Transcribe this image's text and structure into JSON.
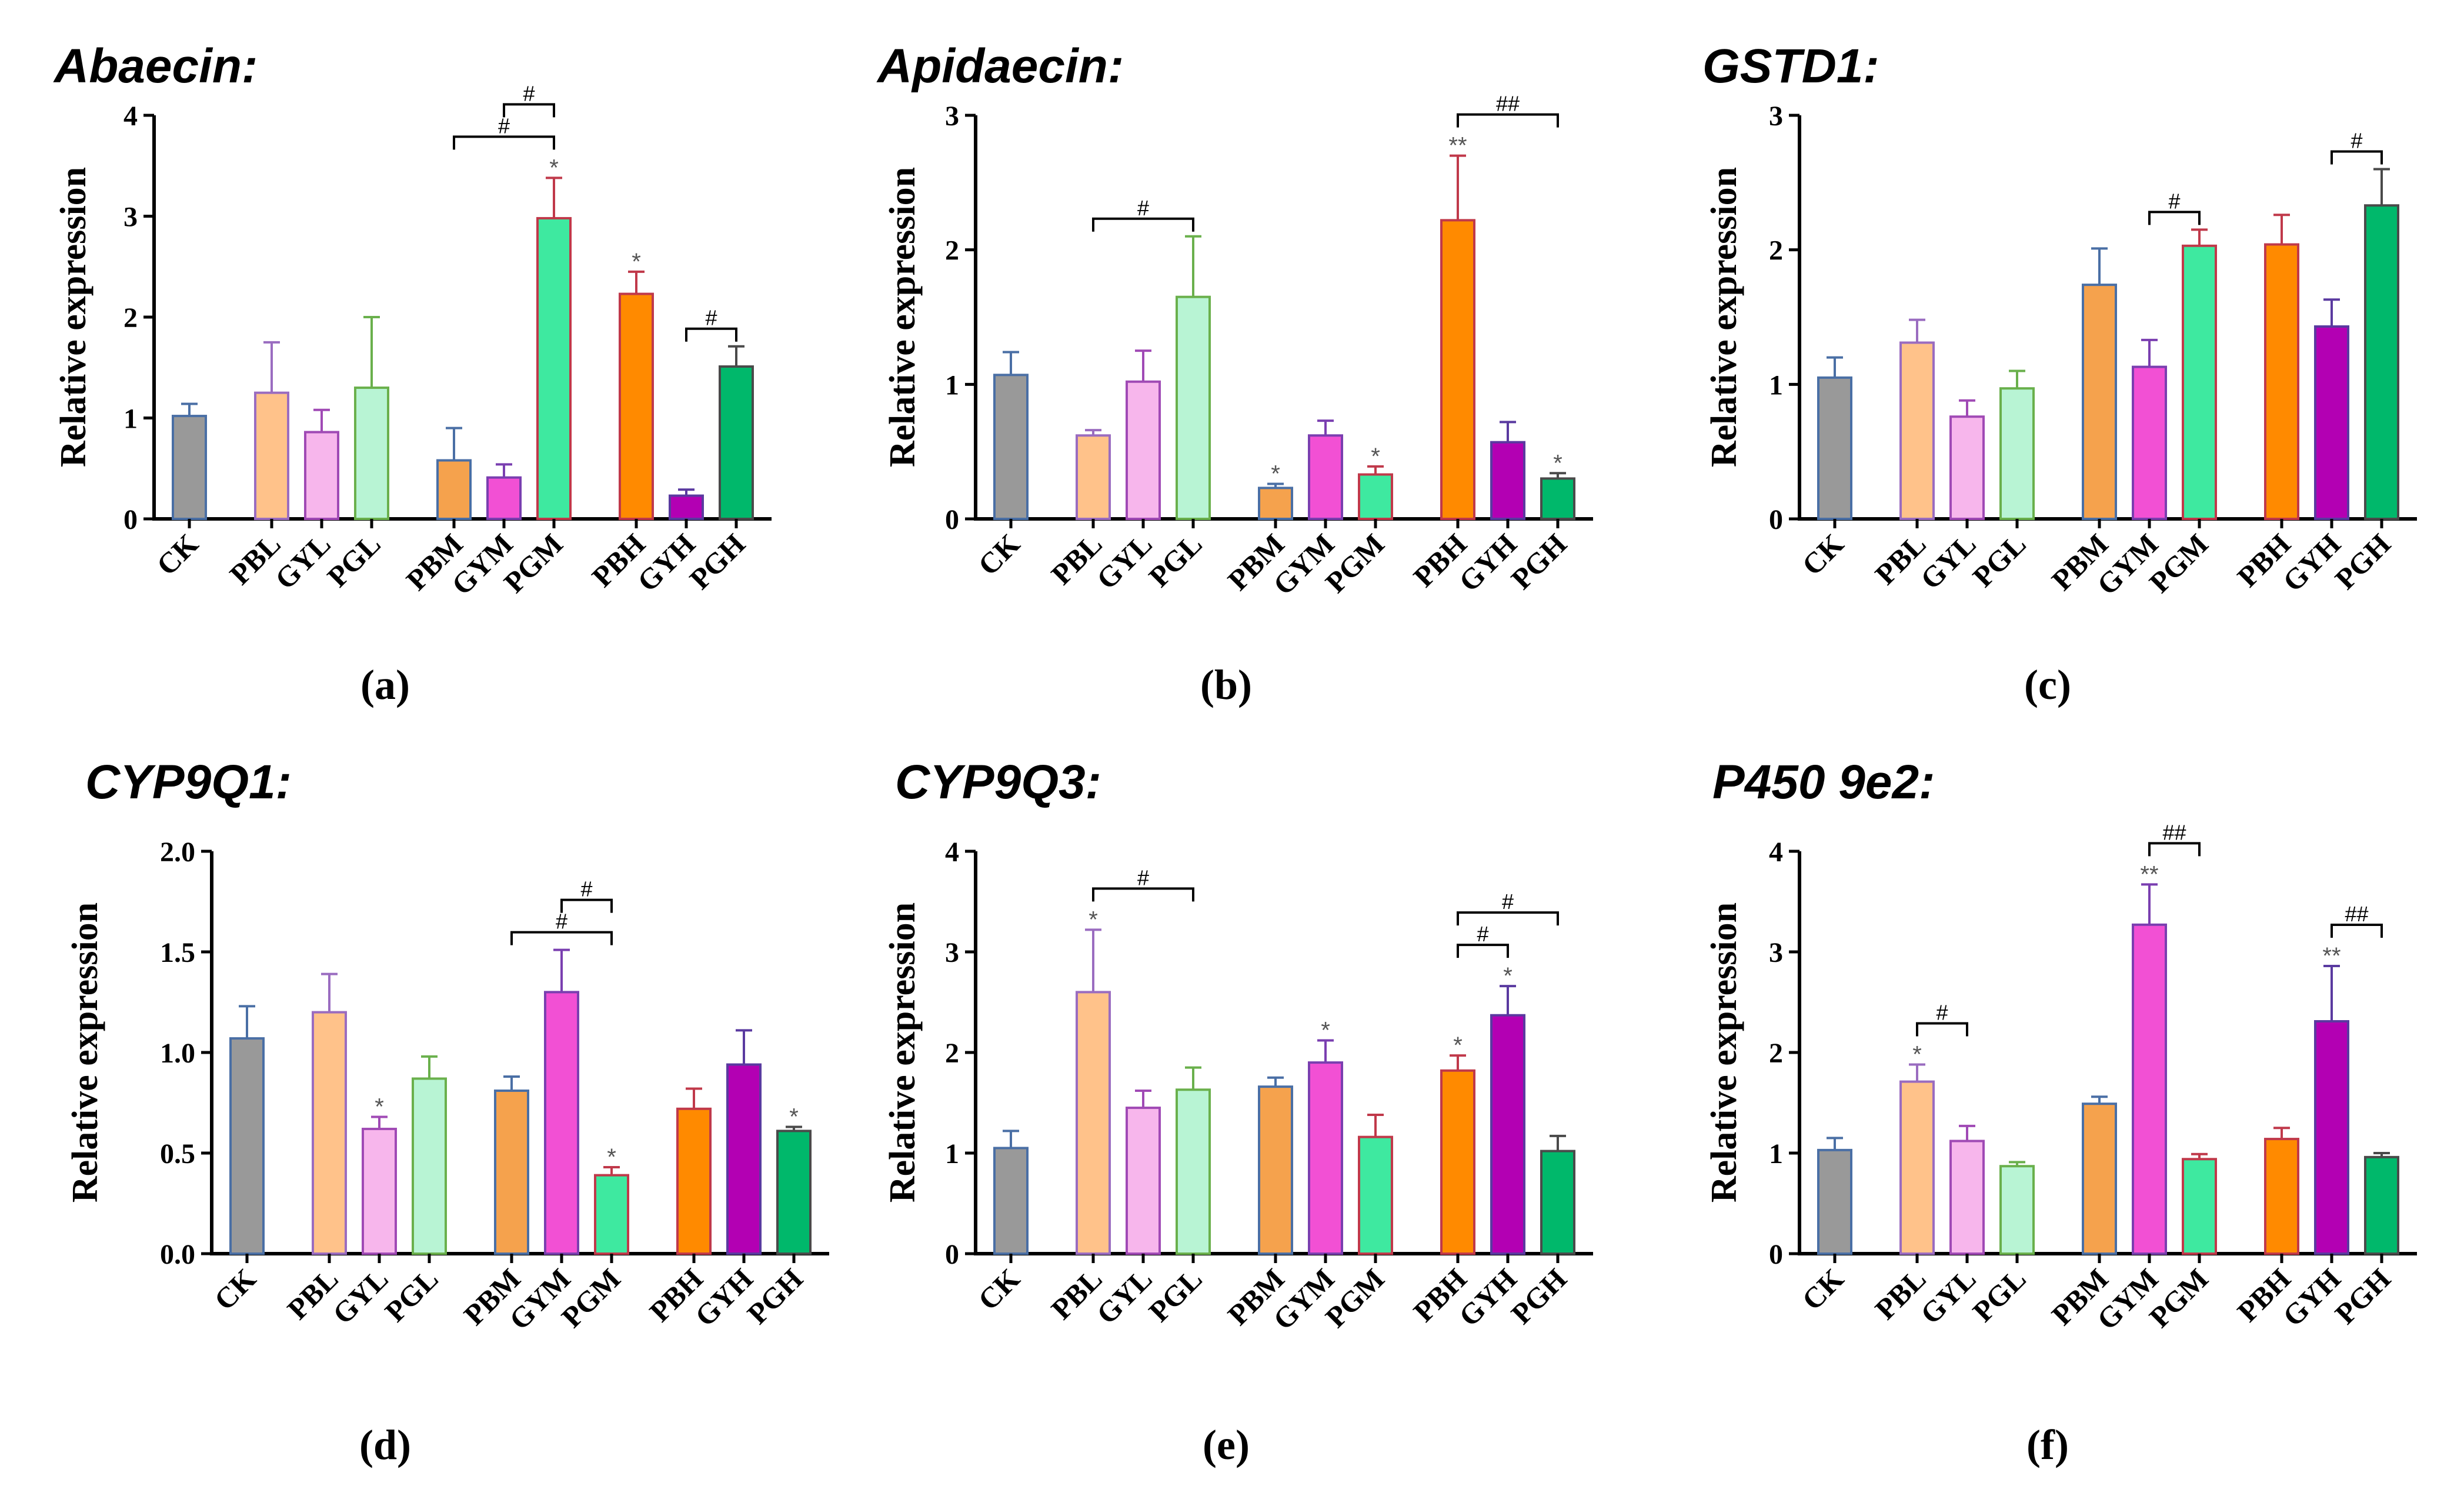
{
  "chart_data": [
    {
      "type": "bar",
      "title": "Abaecin:",
      "panel_label": "(a)",
      "ylabel": "Relative expression",
      "ylim": [
        0,
        4
      ],
      "yticks": [
        "0",
        "1",
        "2",
        "3",
        "4"
      ],
      "categories": [
        "CK",
        "PBL",
        "GYL",
        "PGL",
        "PBM",
        "GYM",
        "PGM",
        "PBH",
        "GYH",
        "PGH"
      ],
      "values": [
        1.02,
        1.25,
        0.86,
        1.3,
        0.58,
        0.41,
        2.98,
        2.23,
        0.23,
        1.51
      ],
      "errors": [
        0.12,
        0.5,
        0.22,
        0.7,
        0.32,
        0.13,
        0.4,
        0.22,
        0.06,
        0.2
      ],
      "significance": [
        "",
        "",
        "",
        "",
        "",
        "",
        "*",
        "*",
        "",
        ""
      ],
      "comparisons": [
        {
          "from": "PBM",
          "to": "PGM",
          "label": "#"
        },
        {
          "from": "GYM",
          "to": "PGM",
          "label": "#"
        },
        {
          "from": "GYH",
          "to": "PGH",
          "label": "#"
        }
      ]
    },
    {
      "type": "bar",
      "title": "Apidaecin:",
      "panel_label": "(b)",
      "ylabel": "Relative expression",
      "ylim": [
        0,
        3
      ],
      "yticks": [
        "0",
        "1",
        "2",
        "3"
      ],
      "categories": [
        "CK",
        "PBL",
        "GYL",
        "PGL",
        "PBM",
        "GYM",
        "PGM",
        "PBH",
        "GYH",
        "PGH"
      ],
      "values": [
        1.07,
        0.62,
        1.02,
        1.65,
        0.23,
        0.62,
        0.33,
        2.22,
        0.57,
        0.3
      ],
      "errors": [
        0.17,
        0.04,
        0.23,
        0.45,
        0.03,
        0.11,
        0.06,
        0.48,
        0.15,
        0.04
      ],
      "significance": [
        "",
        "",
        "",
        "",
        "*",
        "",
        "*",
        "**",
        "",
        "*"
      ],
      "comparisons": [
        {
          "from": "PBL",
          "to": "PGL",
          "label": "#"
        },
        {
          "from": "PBH",
          "to": "PGH",
          "label": "##"
        }
      ]
    },
    {
      "type": "bar",
      "title": "GSTD1:",
      "panel_label": "(c)",
      "ylabel": "Relative expression",
      "ylim": [
        0,
        3
      ],
      "yticks": [
        "0",
        "1",
        "2",
        "3"
      ],
      "categories": [
        "CK",
        "PBL",
        "GYL",
        "PGL",
        "PBM",
        "GYM",
        "PGM",
        "PBH",
        "GYH",
        "PGH"
      ],
      "values": [
        1.05,
        1.31,
        0.76,
        0.97,
        1.74,
        1.13,
        2.03,
        2.04,
        1.43,
        2.33
      ],
      "errors": [
        0.15,
        0.17,
        0.12,
        0.13,
        0.27,
        0.2,
        0.12,
        0.22,
        0.2,
        0.27
      ],
      "significance": [
        "",
        "",
        "",
        "",
        "",
        "",
        "",
        "",
        "",
        ""
      ],
      "comparisons": [
        {
          "from": "GYM",
          "to": "PGM",
          "label": "#"
        },
        {
          "from": "GYH",
          "to": "PGH",
          "label": "#"
        }
      ]
    },
    {
      "type": "bar",
      "title": "CYP9Q1:",
      "panel_label": "(d)",
      "ylabel": "Relative expression",
      "ylim": [
        0,
        2
      ],
      "yticks": [
        "0.0",
        "0.5",
        "1.0",
        "1.5",
        "2.0"
      ],
      "categories": [
        "CK",
        "PBL",
        "GYL",
        "PGL",
        "PBM",
        "GYM",
        "PGM",
        "PBH",
        "GYH",
        "PGH"
      ],
      "values": [
        1.07,
        1.2,
        0.62,
        0.87,
        0.81,
        1.3,
        0.39,
        0.72,
        0.94,
        0.61
      ],
      "errors": [
        0.16,
        0.19,
        0.06,
        0.11,
        0.07,
        0.21,
        0.04,
        0.1,
        0.17,
        0.02
      ],
      "significance": [
        "",
        "",
        "*",
        "",
        "",
        "",
        "*",
        "",
        "",
        "*"
      ],
      "comparisons": [
        {
          "from": "PBM",
          "to": "PGM",
          "label": "#"
        },
        {
          "from": "GYM",
          "to": "PGM",
          "label": "#"
        }
      ]
    },
    {
      "type": "bar",
      "title": "CYP9Q3:",
      "panel_label": "(e)",
      "ylabel": "Relative expression",
      "ylim": [
        0,
        4
      ],
      "yticks": [
        "0",
        "1",
        "2",
        "3",
        "4"
      ],
      "categories": [
        "CK",
        "PBL",
        "GYL",
        "PGL",
        "PBM",
        "GYM",
        "PGM",
        "PBH",
        "GYH",
        "PGH"
      ],
      "values": [
        1.05,
        2.6,
        1.45,
        1.63,
        1.66,
        1.9,
        1.16,
        1.82,
        2.37,
        1.02
      ],
      "errors": [
        0.17,
        0.62,
        0.17,
        0.22,
        0.09,
        0.22,
        0.22,
        0.15,
        0.29,
        0.15
      ],
      "significance": [
        "",
        "*",
        "",
        "",
        "",
        "*",
        "",
        "*",
        "*",
        ""
      ],
      "comparisons": [
        {
          "from": "PBL",
          "to": "PGL",
          "label": "#"
        },
        {
          "from": "PBH",
          "to": "GYH",
          "label": "#"
        },
        {
          "from": "PBH",
          "to": "PGH",
          "label": "#"
        }
      ]
    },
    {
      "type": "bar",
      "title": "P450 9e2:",
      "panel_label": "(f)",
      "ylabel": "Relative expression",
      "ylim": [
        0,
        4
      ],
      "yticks": [
        "0",
        "1",
        "2",
        "3",
        "4"
      ],
      "categories": [
        "CK",
        "PBL",
        "GYL",
        "PGL",
        "PBM",
        "GYM",
        "PGM",
        "PBH",
        "GYH",
        "PGH"
      ],
      "values": [
        1.03,
        1.71,
        1.12,
        0.87,
        1.49,
        3.27,
        0.94,
        1.14,
        2.31,
        0.96
      ],
      "errors": [
        0.12,
        0.17,
        0.15,
        0.04,
        0.07,
        0.4,
        0.05,
        0.11,
        0.55,
        0.04
      ],
      "significance": [
        "",
        "*",
        "",
        "",
        "",
        "**",
        "",
        "",
        "**",
        ""
      ],
      "comparisons": [
        {
          "from": "PBL",
          "to": "GYL",
          "label": "#"
        },
        {
          "from": "GYM",
          "to": "PGM",
          "label": "##"
        },
        {
          "from": "GYH",
          "to": "PGH",
          "label": "##"
        }
      ]
    }
  ],
  "colors": {
    "CK": {
      "fill": "#999999",
      "stroke": "#4a6fa5"
    },
    "PBL": {
      "fill": "#ffc28a",
      "stroke": "#9a6cc0"
    },
    "GYL": {
      "fill": "#f7b6ec",
      "stroke": "#a04ab5"
    },
    "PGL": {
      "fill": "#b8f4d4",
      "stroke": "#6ab04c"
    },
    "PBM": {
      "fill": "#f5a24d",
      "stroke": "#4a6fa5"
    },
    "GYM": {
      "fill": "#f250d4",
      "stroke": "#7a3fb0"
    },
    "PGM": {
      "fill": "#3ee9a0",
      "stroke": "#c0394a"
    },
    "PBH": {
      "fill": "#ff8a00",
      "stroke": "#c0394a"
    },
    "GYH": {
      "fill": "#b300b3",
      "stroke": "#5a3aa0"
    },
    "PGH": {
      "fill": "#00b86b",
      "stroke": "#4a4a4a"
    }
  }
}
